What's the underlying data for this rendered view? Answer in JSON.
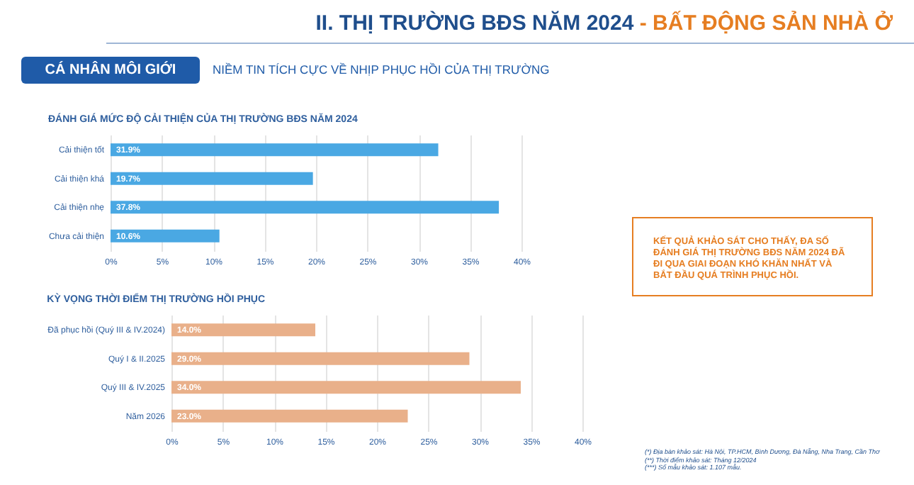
{
  "chart_data": [
    {
      "type": "bar",
      "orientation": "horizontal",
      "title": "ĐÁNH GIÁ MỨC ĐỘ CẢI THIỆN CỦA THỊ TRƯỜNG BĐS NĂM 2024",
      "categories": [
        "Cải thiện tốt",
        "Cải thiện khá",
        "Cải thiện nhẹ",
        "Chưa cải thiện"
      ],
      "values": [
        31.9,
        19.7,
        37.8,
        10.6
      ],
      "value_labels": [
        "31.9%",
        "19.7%",
        "37.8%",
        "10.6%"
      ],
      "color": "#4aa8e3",
      "xlim": [
        0,
        40
      ],
      "xticks": [
        {
          "value": 0,
          "label": "0%"
        },
        {
          "value": 5,
          "label": "5%"
        },
        {
          "value": 10,
          "label": "10%"
        },
        {
          "value": 15,
          "label": "15%"
        },
        {
          "value": 20,
          "label": "20%"
        },
        {
          "value": 25,
          "label": "25%"
        },
        {
          "value": 30,
          "label": "30%"
        },
        {
          "value": 35,
          "label": "35%"
        },
        {
          "value": 40,
          "label": "40%"
        }
      ],
      "grid": "x"
    },
    {
      "type": "bar",
      "orientation": "horizontal",
      "title": "KỲ VỌNG THỜI ĐIỂM THỊ TRƯỜNG HỒI PHỤC",
      "categories": [
        "Đã phục hồi (Quý III & IV.2024)",
        "Quý I & II.2025",
        "Quý III & IV.2025",
        "Năm 2026"
      ],
      "values": [
        14.0,
        29.0,
        34.0,
        23.0
      ],
      "value_labels": [
        "14.0%",
        "29.0%",
        "34.0%",
        "23.0%"
      ],
      "color": "#e9b08a",
      "xlim": [
        0,
        40
      ],
      "xticks": [
        {
          "value": 0,
          "label": "0%"
        },
        {
          "value": 5,
          "label": "5%"
        },
        {
          "value": 10,
          "label": "10%"
        },
        {
          "value": 15,
          "label": "15%"
        },
        {
          "value": 20,
          "label": "20%"
        },
        {
          "value": 25,
          "label": "25%"
        },
        {
          "value": 30,
          "label": "30%"
        },
        {
          "value": 35,
          "label": "35%"
        },
        {
          "value": 40,
          "label": "40%"
        }
      ],
      "grid": "x"
    },
    {
      "type": "other",
      "title": "II. THỊ TRƯỜNG BĐS NĂM 2024",
      "subtitle": "- BẤT ĐỘNG SẢN NHÀ Ở",
      "annotations": [
        "CÁ NHÂN MÔI GIỚI",
        "NIỀM TIN TÍCH CỰC VỀ NHỊP PHỤC HỒI CỦA THỊ TRƯỜNG",
        "KẾT QUẢ KHẢO SÁT CHO THẤY, ĐA SỐ ĐÁNH GIÁ THỊ TRƯỜNG BĐS NĂM 2024 ĐÃ ĐI QUA GIAI ĐOẠN KHÓ KHĂN NHẤT VÀ BẮT ĐẦU QUÁ TRÌNH PHỤC HỒI.",
        "(*) Địa bàn khảo sát: Hà Nội, TP.HCM, Bình Dương, Đà Nẵng, Nha Trang, Cần Thơ",
        "(**) Thời điểm khảo sát: Tháng 12/2024",
        "(***) Số mẫu khảo sát: 1.107 mẫu."
      ]
    }
  ]
}
